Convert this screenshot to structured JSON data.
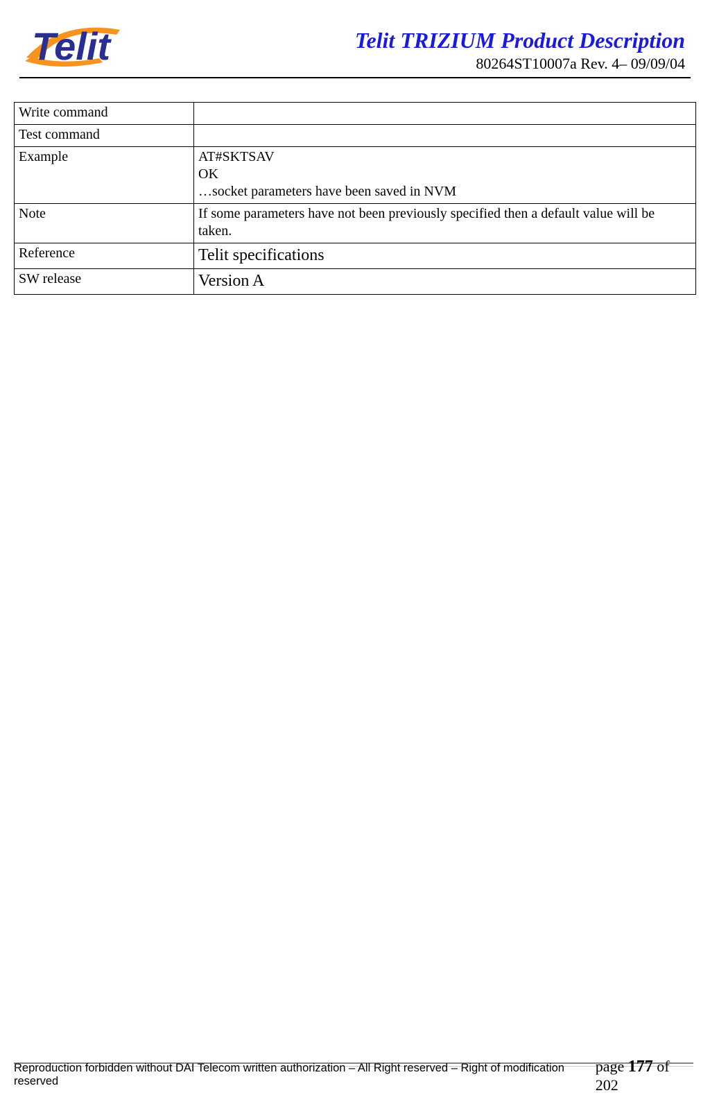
{
  "header": {
    "title": "Telit TRIZIUM Product Description",
    "subtitle": "80264ST10007a  Rev. 4– 09/09/04",
    "title_color": "#1a1adf",
    "logo": {
      "text": "Telit",
      "swoosh_color": "#f7931e",
      "text_color": "#2a2f8f"
    }
  },
  "table": {
    "rows": [
      {
        "label": "Write command",
        "value": ""
      },
      {
        "label": "Test command",
        "value": ""
      },
      {
        "label": "Example",
        "value": "AT#SKTSAV\nOK\n…socket parameters have been saved in NVM"
      },
      {
        "label": "Note",
        "value": "If some parameters have not been previously specified then a default value will be taken."
      },
      {
        "label": "Reference",
        "value": "Telit specifications",
        "big": true
      },
      {
        "label": "SW release",
        "value": "Version A",
        "big": true
      }
    ]
  },
  "footer": {
    "left": "Reproduction forbidden without DAI Telecom written authorization – All Right reserved – Right of modification reserved",
    "page_label_prefix": "page ",
    "page_number": "177",
    "page_label_middle": " of ",
    "page_total": "202"
  }
}
